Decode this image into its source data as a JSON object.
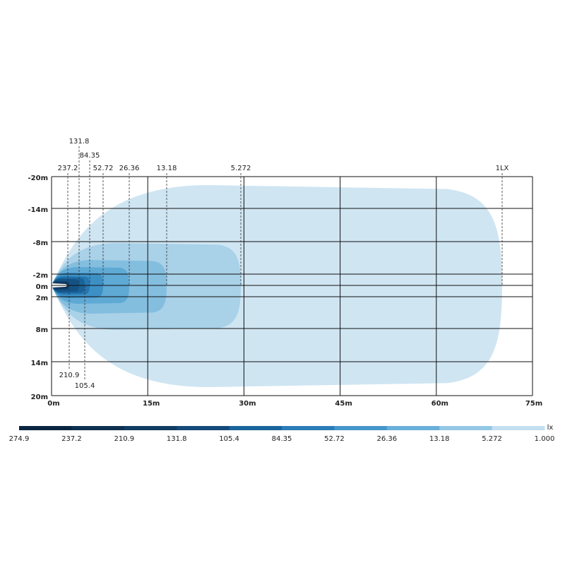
{
  "isolux": {
    "x_axis": {
      "ticks": [
        {
          "value": 0,
          "label": "0m"
        },
        {
          "value": 15,
          "label": "15m"
        },
        {
          "value": 30,
          "label": "30m"
        },
        {
          "value": 45,
          "label": "45m"
        },
        {
          "value": 60,
          "label": "60m"
        },
        {
          "value": 75,
          "label": "75m"
        }
      ]
    },
    "y_axis": {
      "ticks": [
        {
          "value": -20,
          "label": "-20m"
        },
        {
          "value": -14,
          "label": "-14m"
        },
        {
          "value": -8,
          "label": "-8m"
        },
        {
          "value": -2,
          "label": "-2m"
        },
        {
          "value": 0,
          "label": "0m"
        },
        {
          "value": 2,
          "label": "2m"
        },
        {
          "value": 8,
          "label": "8m"
        },
        {
          "value": 14,
          "label": "14m"
        },
        {
          "value": 20,
          "label": "20m"
        }
      ]
    },
    "contours": [
      {
        "level": {
          "value": 1,
          "label": "1LX"
        },
        "color": "#cfe5f2"
      },
      {
        "level": 5.272,
        "color": "#a9d1e8"
      },
      {
        "level": 13.18,
        "color": "#84bedf"
      },
      {
        "level": 26.36,
        "color": "#5fa9d5"
      },
      {
        "level": 52.72,
        "color": "#3d90c5"
      },
      {
        "level": 84.35,
        "color": "#2577b1"
      },
      {
        "level": 105.4,
        "color": "#1a6399"
      },
      {
        "level": 131.8,
        "color": "#145286"
      },
      {
        "level": 210.9,
        "color": "#103f6b"
      },
      {
        "level": 237.2,
        "color": "#0c2e51"
      }
    ],
    "colorbar": {
      "unit": "lx",
      "labels": [
        274.9,
        237.2,
        210.9,
        131.8,
        105.4,
        84.35,
        52.72,
        26.36,
        13.18,
        5.272,
        {
          "value": 1,
          "label": "1.000"
        }
      ],
      "colors": [
        "#0a2540",
        "#0e3150",
        "#113c62",
        "#144a79",
        "#1a649c",
        "#2a7db8",
        "#4597cb",
        "#6aafd9",
        "#94c7e4",
        "#c3dff0"
      ]
    }
  }
}
